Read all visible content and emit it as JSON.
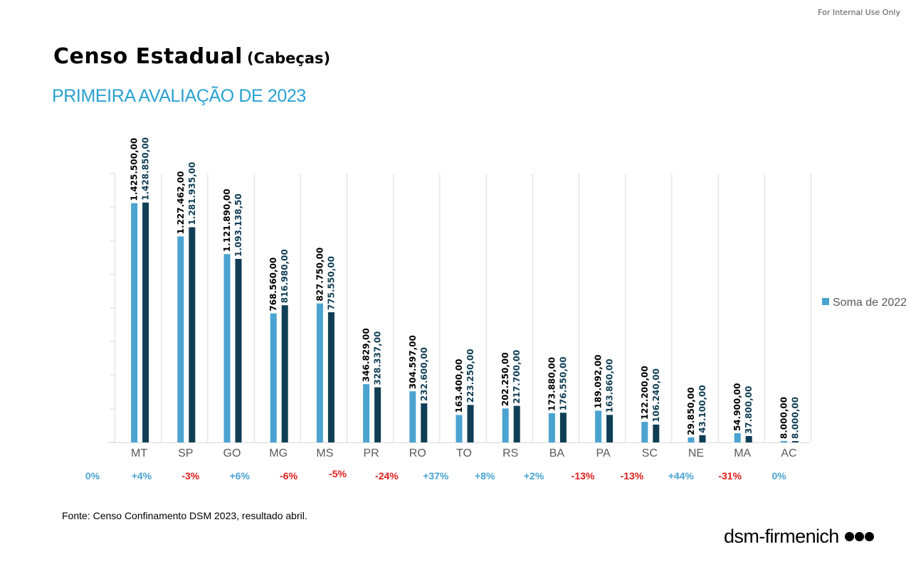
{
  "header": {
    "internal_note": "For Internal Use Only",
    "title": "Censo Estadual",
    "title_unit": "(Cabeças)",
    "subtitle": "PRIMEIRA AVALIAÇÃO DE 2023"
  },
  "legend": {
    "label": "Soma de 2022",
    "color": "#4aa3d0",
    "placement": "right"
  },
  "source": "Fonte: Censo Confinamento DSM 2023, resultado abril.",
  "logo": {
    "text": "dsm-firmenich",
    "icon": "three-dots-icon"
  },
  "colors": {
    "series_2022": "#4aa3d0",
    "series_2023": "#0f3e55",
    "positive": "#4aa3d0",
    "negative": "#e01c1c",
    "neutral": "#4aa3d0"
  },
  "chart_data": {
    "type": "bar",
    "categories": [
      "MT",
      "SP",
      "GO",
      "MG",
      "MS",
      "PR",
      "RO",
      "TO",
      "RS",
      "BA",
      "PA",
      "SC",
      "NE",
      "MA",
      "AC"
    ],
    "series": [
      {
        "name": "Soma de 2022",
        "values": [
          1425500,
          1227462,
          1121890,
          768560,
          827750,
          346829,
          304597,
          163400,
          202250,
          173880,
          189092,
          122200,
          29850,
          54900,
          8000
        ],
        "labels": [
          "1.425.500,00",
          "1.227.462,00",
          "1.121.890,00",
          "768.560,00",
          "827.750,00",
          "346.829,00",
          "304.597,00",
          "163.400,00",
          "202.250,00",
          "173.880,00",
          "189.092,00",
          "122.200,00",
          "29.850,00",
          "54.900,00",
          "8.000,00"
        ]
      },
      {
        "values": [
          1428850,
          1281935,
          1093138.5,
          816980,
          775550,
          328337,
          232600,
          223250,
          217700,
          176550,
          163860,
          106240,
          43100,
          37800,
          8000
        ],
        "labels": [
          "1.428.850,00",
          "1.281.935,00",
          "1.093.138,50",
          "816.980,00",
          "775.550,00",
          "328.337,00",
          "232.600,00",
          "223.250,00",
          "217.700,00",
          "176.550,00",
          "163.860,00",
          "106.240,00",
          "43.100,00",
          "37.800,00",
          "8.000,00"
        ]
      }
    ],
    "variation": [
      "0%",
      "+4%",
      "-3%",
      "+6%",
      "-6%",
      "-5%",
      "-24%",
      "+37%",
      "+8%",
      "+2%",
      "-13%",
      "-13%",
      "+44%",
      "-31%",
      "0%"
    ],
    "ylim": [
      0,
      1600000
    ],
    "grid": "vertical-category-separators",
    "legend": "right"
  }
}
